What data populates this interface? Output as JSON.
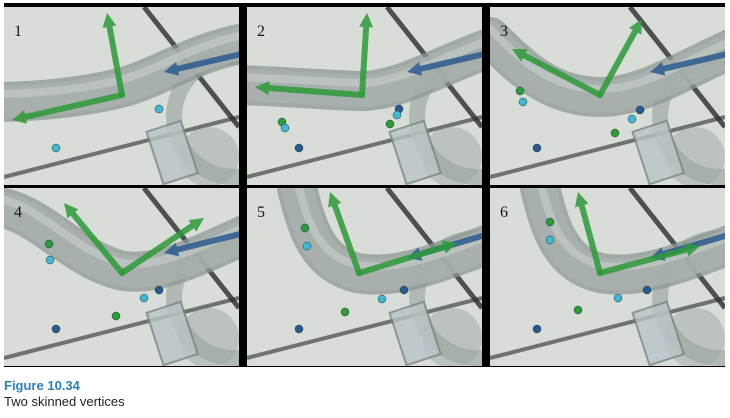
{
  "panels": [
    {
      "label": "1"
    },
    {
      "label": "2"
    },
    {
      "label": "3"
    },
    {
      "label": "4"
    },
    {
      "label": "5"
    },
    {
      "label": "6"
    }
  ],
  "caption": {
    "label": "Figure 10.34",
    "text": "Two skinned vertices"
  },
  "colors": {
    "green_axis": "#2e9a3a",
    "blue_axis": "#2b5a8f",
    "tube": "#a9b2ae",
    "background": "#d9ddd7",
    "vertex_green": "#2f9a3b",
    "vertex_cyan": "#45b7d1",
    "vertex_blue": "#2b5a8f"
  }
}
